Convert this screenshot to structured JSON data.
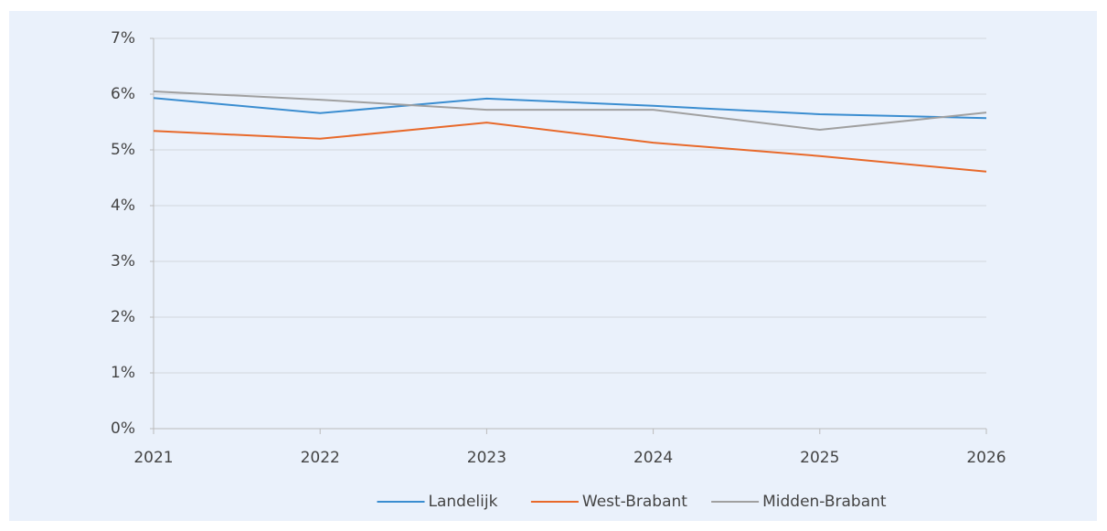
{
  "chart_data": {
    "type": "line",
    "x": [
      2021,
      2022,
      2023,
      2024,
      2025,
      2026
    ],
    "xlim": [
      2021,
      2026
    ],
    "xticks": [
      2021,
      2022,
      2023,
      2024,
      2025,
      2026
    ],
    "ylim": [
      0,
      7
    ],
    "yticks": [
      {
        "value": 0,
        "label": "0%"
      },
      {
        "value": 1,
        "label": "1%"
      },
      {
        "value": 2,
        "label": "2%"
      },
      {
        "value": 3,
        "label": "3%"
      },
      {
        "value": 4,
        "label": "4%"
      },
      {
        "value": 5,
        "label": "5%"
      },
      {
        "value": 6,
        "label": "6%"
      },
      {
        "value": 7,
        "label": "7%"
      }
    ],
    "grid": true,
    "legend": "bottom",
    "series": [
      {
        "name": "Landelijk",
        "color": "#3a8dd0",
        "values": [
          5.93,
          5.66,
          5.92,
          5.79,
          5.64,
          5.57
        ]
      },
      {
        "name": "West-Brabant",
        "color": "#e8692a",
        "values": [
          5.34,
          5.2,
          5.49,
          5.13,
          4.89,
          4.61
        ]
      },
      {
        "name": "Midden-Brabant",
        "color": "#a0a0a0",
        "values": [
          6.05,
          5.9,
          5.72,
          5.72,
          5.36,
          5.67
        ]
      }
    ]
  }
}
